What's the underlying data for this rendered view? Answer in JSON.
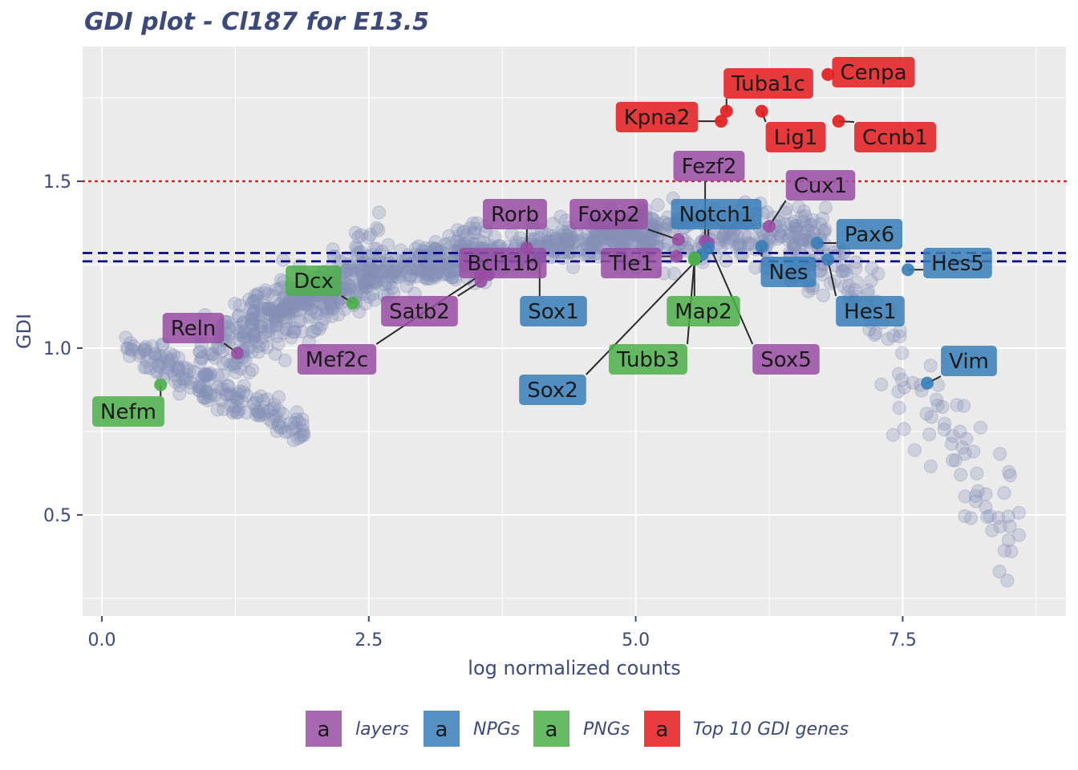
{
  "chart_data": {
    "type": "scatter",
    "title": "GDI plot - Cl187 for E13.5",
    "xlabel": "log normalized counts",
    "ylabel": "GDI",
    "xlim": [
      -0.1,
      9.0
    ],
    "ylim": [
      0.2,
      1.9
    ],
    "x_ticks": [
      0.0,
      2.5,
      5.0,
      7.5
    ],
    "x_tick_labels": [
      "0.0",
      "2.5",
      "5.0",
      "7.5"
    ],
    "y_ticks": [
      0.5,
      1.0,
      1.5
    ],
    "y_tick_labels": [
      "0.5",
      "1.0",
      "1.5"
    ],
    "grid": true,
    "reference_lines": [
      {
        "y": 1.5,
        "style": "dotted",
        "color": "#e41a1c"
      },
      {
        "y": 1.285,
        "style": "dashed",
        "color": "#000080"
      },
      {
        "y": 1.26,
        "style": "dashed",
        "color": "#000080"
      }
    ],
    "background_points": {
      "color": "#8590b8",
      "bands": [
        {
          "x_from": 0.2,
          "x_to": 1.9,
          "y_from": 1.0,
          "y_to": 0.75,
          "spread": 0.06,
          "count": 160
        },
        {
          "x_from": 0.9,
          "x_to": 2.6,
          "y_from": 0.95,
          "y_to": 1.28,
          "spread": 0.12,
          "count": 260
        },
        {
          "x_from": 1.4,
          "x_to": 3.6,
          "y_from": 1.1,
          "y_to": 1.32,
          "spread": 0.07,
          "count": 320
        },
        {
          "x_from": 3.0,
          "x_to": 5.2,
          "y_from": 1.25,
          "y_to": 1.35,
          "spread": 0.06,
          "count": 320
        },
        {
          "x_from": 4.5,
          "x_to": 6.8,
          "y_from": 1.33,
          "y_to": 1.35,
          "spread": 0.08,
          "count": 260
        },
        {
          "x_from": 6.4,
          "x_to": 7.3,
          "y_from": 1.3,
          "y_to": 1.15,
          "spread": 0.12,
          "count": 80
        },
        {
          "x_from": 7.3,
          "x_to": 8.6,
          "y_from": 1.0,
          "y_to": 0.45,
          "spread": 0.18,
          "count": 70
        }
      ]
    },
    "series": [
      {
        "name": "layers",
        "color": "#984ea3"
      },
      {
        "name": "NPGs",
        "color": "#377eb8"
      },
      {
        "name": "PNGs",
        "color": "#4daf4a"
      },
      {
        "name": "Top 10 GDI genes",
        "color": "#e41a1c"
      }
    ],
    "points": [
      {
        "gene": "Cenpa",
        "x": 6.8,
        "y": 1.82,
        "group": 3
      },
      {
        "gene": "Tuba1c",
        "x": 5.85,
        "y": 1.71,
        "group": 3
      },
      {
        "gene": "Kpna2",
        "x": 5.8,
        "y": 1.68,
        "group": 3
      },
      {
        "gene": "Lig1",
        "x": 6.18,
        "y": 1.71,
        "group": 3
      },
      {
        "gene": "Ccnb1",
        "x": 6.9,
        "y": 1.68,
        "group": 3
      },
      {
        "gene": "Fezf2",
        "x": 5.65,
        "y": 1.32,
        "group": 0
      },
      {
        "gene": "Cux1",
        "x": 6.25,
        "y": 1.365,
        "group": 0
      },
      {
        "gene": "Rorb",
        "x": 3.98,
        "y": 1.3,
        "group": 0
      },
      {
        "gene": "Foxp2",
        "x": 5.4,
        "y": 1.325,
        "group": 0
      },
      {
        "gene": "Bcl11b",
        "x": 3.62,
        "y": 1.22,
        "group": 0
      },
      {
        "gene": "Tle1",
        "x": 5.38,
        "y": 1.275,
        "group": 0
      },
      {
        "gene": "Satb2",
        "x": 3.55,
        "y": 1.2,
        "group": 0
      },
      {
        "gene": "Reln",
        "x": 1.27,
        "y": 0.985,
        "group": 0
      },
      {
        "gene": "Mef2c",
        "x": 3.55,
        "y": 1.22,
        "group": 0
      },
      {
        "gene": "Sox5",
        "x": 5.68,
        "y": 1.315,
        "group": 0
      },
      {
        "gene": "Notch1",
        "x": 5.68,
        "y": 1.3,
        "group": 1
      },
      {
        "gene": "Pax6",
        "x": 6.7,
        "y": 1.315,
        "group": 1
      },
      {
        "gene": "Nes",
        "x": 6.18,
        "y": 1.305,
        "group": 1
      },
      {
        "gene": "Hes5",
        "x": 7.55,
        "y": 1.235,
        "group": 1
      },
      {
        "gene": "Hes1",
        "x": 6.8,
        "y": 1.265,
        "group": 1
      },
      {
        "gene": "Sox1",
        "x": 4.1,
        "y": 1.27,
        "group": 1
      },
      {
        "gene": "Sox2",
        "x": 5.62,
        "y": 1.28,
        "group": 1
      },
      {
        "gene": "Vim",
        "x": 7.73,
        "y": 0.895,
        "group": 1
      },
      {
        "gene": "Dcx",
        "x": 2.35,
        "y": 1.135,
        "group": 2
      },
      {
        "gene": "Map2",
        "x": 5.55,
        "y": 1.27,
        "group": 2
      },
      {
        "gene": "Tubb3",
        "x": 5.55,
        "y": 1.265,
        "group": 2
      },
      {
        "gene": "Nefm",
        "x": 0.55,
        "y": 0.89,
        "group": 2
      }
    ],
    "legend": {
      "placement": "bottom",
      "key_glyph": "a",
      "entries": [
        "layers",
        "NPGs",
        "PNGs",
        "Top 10 GDI genes"
      ]
    }
  }
}
